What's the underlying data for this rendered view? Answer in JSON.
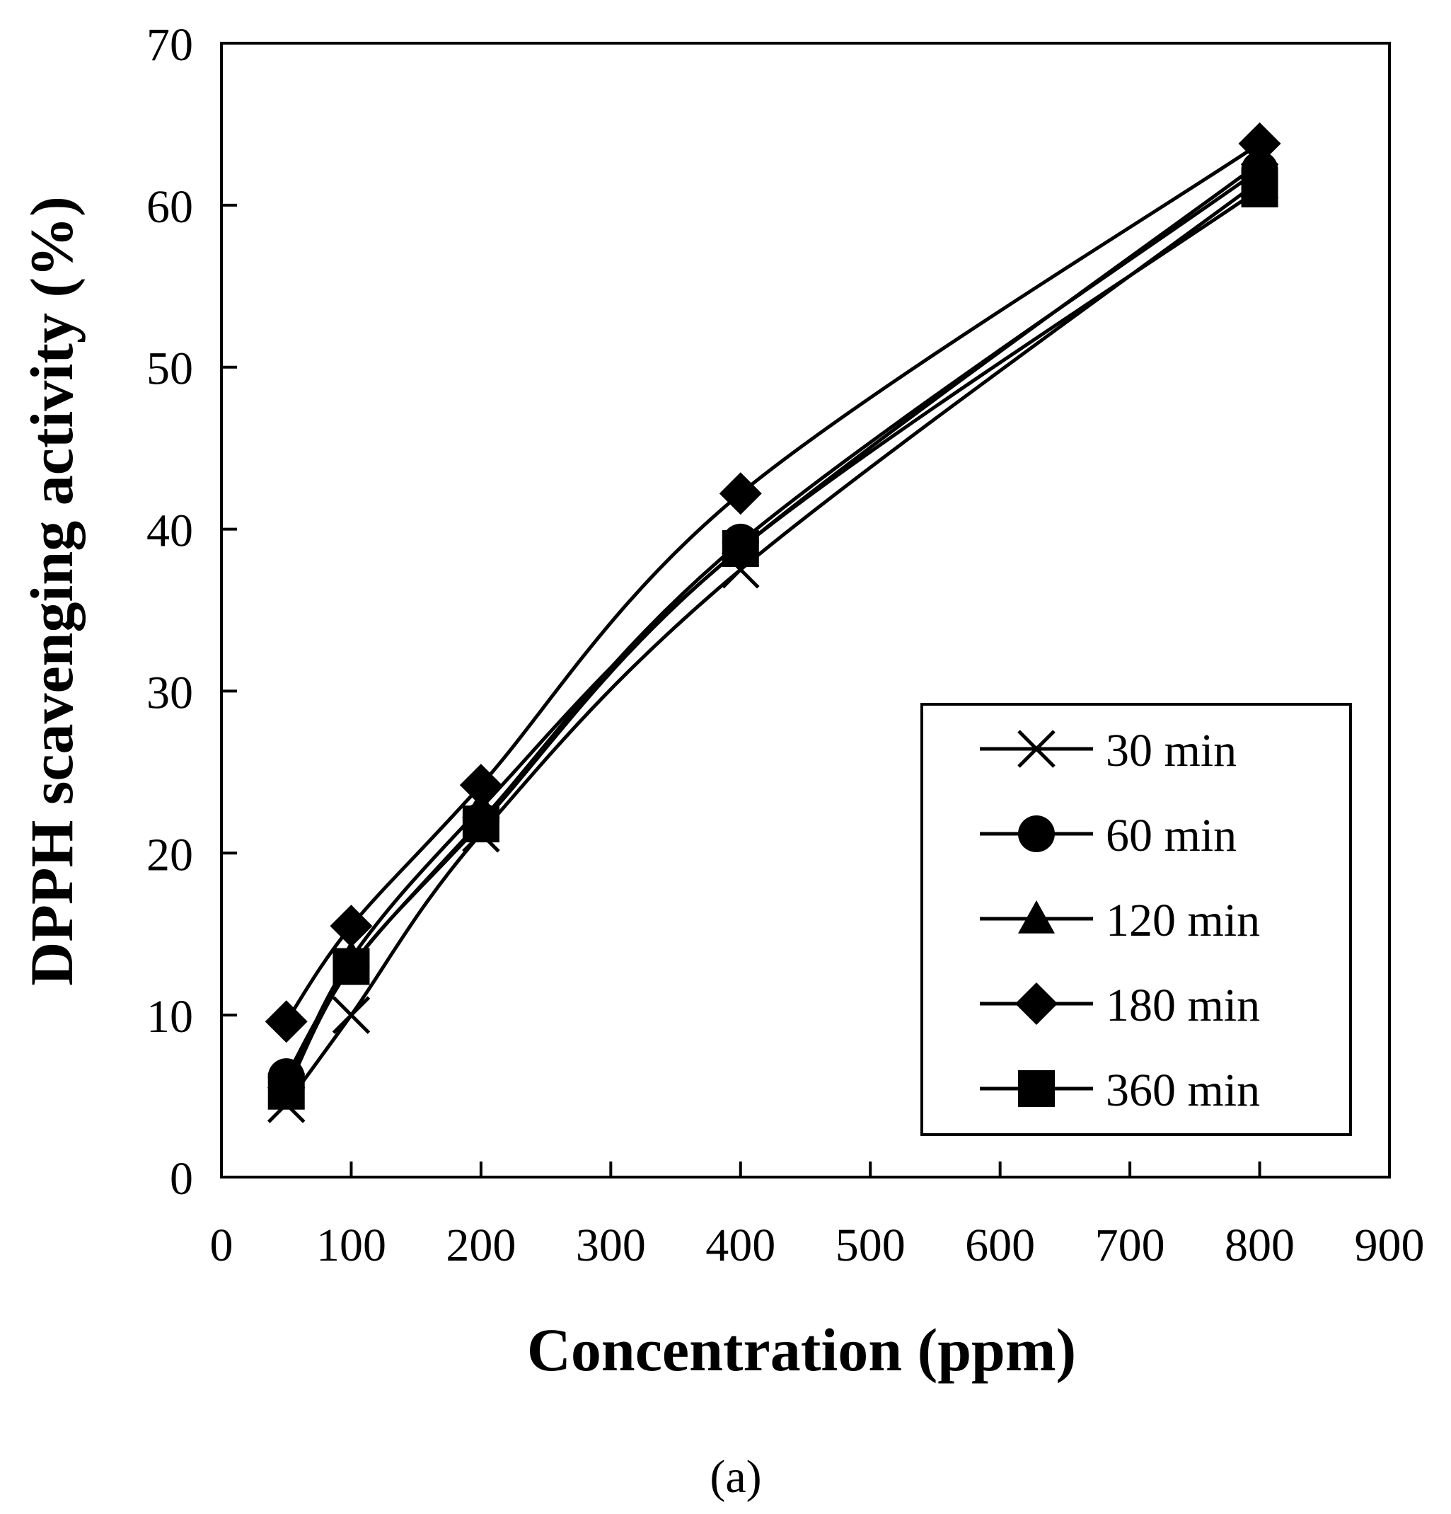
{
  "chart_data": {
    "type": "line",
    "title": "",
    "xlabel": "Concentration  (ppm)",
    "ylabel": "DPPH scavenging activity (%)",
    "panel_label": "(a)",
    "xlim": [
      0,
      900
    ],
    "ylim": [
      0,
      70
    ],
    "xticks": [
      0,
      100,
      200,
      300,
      400,
      500,
      600,
      700,
      800,
      900
    ],
    "yticks": [
      0,
      10,
      20,
      30,
      40,
      50,
      60,
      70
    ],
    "grid": false,
    "legend_position": "bottom-right",
    "x": [
      50,
      100,
      200,
      400,
      800
    ],
    "series": [
      {
        "name": "30 min",
        "marker": "x",
        "values": [
          4.5,
          10.0,
          21.2,
          37.5,
          61.5
        ]
      },
      {
        "name": "60 min",
        "marker": "circle",
        "values": [
          6.2,
          13.0,
          22.0,
          39.2,
          62.2
        ]
      },
      {
        "name": "120 min",
        "marker": "triangle",
        "values": [
          5.5,
          13.5,
          22.8,
          38.8,
          62.6
        ]
      },
      {
        "name": "180 min",
        "marker": "diamond",
        "values": [
          9.6,
          15.5,
          24.2,
          42.2,
          63.8
        ]
      },
      {
        "name": "360 min",
        "marker": "square",
        "values": [
          5.3,
          13.0,
          21.8,
          38.8,
          61.0
        ]
      }
    ]
  }
}
